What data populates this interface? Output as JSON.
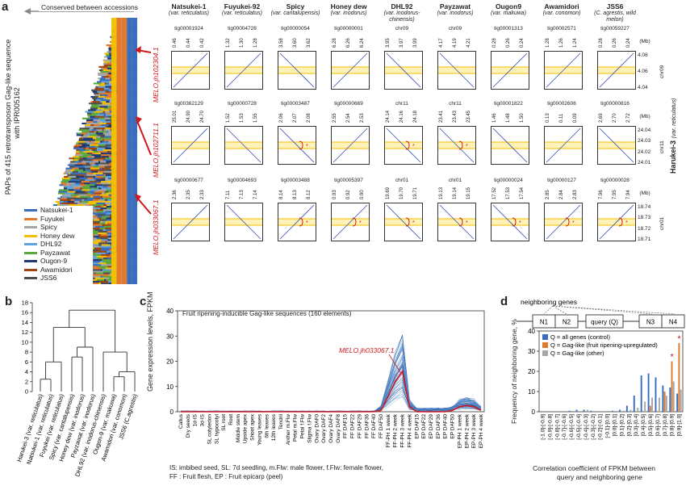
{
  "panel_a": {
    "letter": "a",
    "conserved_label": "Conserved between accessions",
    "y_axis_label": "PAPs of 415 retrotransposon Gag-like sequence",
    "y_axis_label2": "with IPR005162",
    "legend": [
      {
        "name": "Natsukei-1",
        "color": "#3a6ebd"
      },
      {
        "name": "Fuyukei",
        "color": "#e07a2e"
      },
      {
        "name": "Spicy",
        "color": "#a6a6a6"
      },
      {
        "name": "Honey dew",
        "color": "#f2c000"
      },
      {
        "name": "DHL92",
        "color": "#5fa3dc"
      },
      {
        "name": "Payzawat",
        "color": "#5aa83c"
      },
      {
        "name": "Ougon-9",
        "color": "#203a70"
      },
      {
        "name": "Awamidori",
        "color": "#a0450f"
      },
      {
        "name": "JSS6",
        "color": "#505050"
      }
    ],
    "cultivars": [
      {
        "name": "Natsukei-1",
        "sub": "(var. reticulatus)"
      },
      {
        "name": "Fuyukei-92",
        "sub": "(var. reticulatus)"
      },
      {
        "name": "Spicy",
        "sub": "(var. cantalupensis)"
      },
      {
        "name": "Honey dew",
        "sub": "(var. inodorus)"
      },
      {
        "name": "DHL92",
        "sub": "(var. inodorus-chinensis)"
      },
      {
        "name": "Payzawat",
        "sub": "(var. inodorus)"
      },
      {
        "name": "Ougon9",
        "sub": "(var. makuwa)"
      },
      {
        "name": "Awamidori",
        "sub": "(var. conomon)"
      },
      {
        "name": "JSS6",
        "sub": "(C. agrestis, wild melon)"
      }
    ],
    "reference_label": "Harukei-3",
    "reference_sub": "(var. reticulatus)",
    "mb_label": "(Mb)",
    "rows": [
      {
        "gene": "MELO.jh102304.1",
        "tigs": [
          "tig00001924",
          "tig00004728",
          "tig00000054",
          "tig00000001",
          "chr09",
          "chr09",
          "tig00001313",
          "tig00002571",
          "tig00059227"
        ],
        "ticks": [
          [
            "0.46",
            "0.44",
            "0.42"
          ],
          [
            "1.32",
            "1.30",
            "1.28"
          ],
          [
            "3.58",
            "3.60",
            "3.62"
          ],
          [
            "6.28",
            "6.26",
            "6.24"
          ],
          [
            "3.95",
            "3.97",
            "3.99"
          ],
          [
            "4.17",
            "4.19",
            "4.21"
          ],
          [
            "0.28",
            "0.26",
            "0.24"
          ],
          [
            "1.28",
            "1.26",
            "1.24"
          ],
          [
            "0.28",
            "0.26",
            "0.24"
          ]
        ],
        "chr": "chr09",
        "yticks": [
          "4.08",
          "4.06",
          "4.04"
        ]
      },
      {
        "gene": "MELO.jh102711.1",
        "tigs": [
          "tig00362129",
          "tig00000728",
          "tig00003487",
          "tig00000669",
          "chr11",
          "chr11",
          "tig00001822",
          "tig00002606",
          "tig00000816"
        ],
        "ticks": [
          [
            "25.01",
            "24.90",
            "24.70"
          ],
          [
            "1.52",
            "1.53",
            "1.55"
          ],
          [
            "2.06",
            "2.07",
            "2.08"
          ],
          [
            "2.55",
            "2.54",
            "2.53"
          ],
          [
            "24.14",
            "24.16",
            "24.18"
          ],
          [
            "23.41",
            "23.43",
            "23.45"
          ],
          [
            "1.46",
            "1.48",
            "1.50"
          ],
          [
            "0.13",
            "0.11",
            "0.09"
          ],
          [
            "2.69",
            "2.70",
            "2.72"
          ]
        ],
        "chr": "chr11",
        "yticks": [
          "24.04",
          "24.03",
          "24.02",
          "24.01"
        ]
      },
      {
        "gene": "MELO.jh033067.1",
        "tigs": [
          "tig00000677",
          "tig00004693",
          "tig00003488",
          "tig00005397",
          "chr01",
          "chr01",
          "tig00000024",
          "tig00000127",
          "tig00000028"
        ],
        "ticks": [
          [
            "2.36",
            "2.35",
            "2.33"
          ],
          [
            "7.11",
            "7.13",
            "7.14"
          ],
          [
            "8.14",
            "8.13",
            "8.12"
          ],
          [
            "0.93",
            "0.92",
            "0.90"
          ],
          [
            "19.69",
            "19.70",
            "19.71"
          ],
          [
            "19.13",
            "19.14",
            "19.15"
          ],
          [
            "17.52",
            "17.53",
            "17.54"
          ],
          [
            "2.85",
            "2.84",
            "2.83"
          ],
          [
            "7.96",
            "7.95",
            "7.94"
          ]
        ],
        "chr": "chr01",
        "yticks": [
          "18.74",
          "18.73",
          "18.72",
          "18.71"
        ]
      }
    ]
  },
  "panel_b": {
    "letter": "b",
    "yticks": [
      "0",
      "2",
      "4",
      "6",
      "8",
      "10",
      "12",
      "14",
      "16",
      "18"
    ],
    "leaves": [
      "Harukei-3 (var. reticulatus)",
      "Natsukei-1 (var. reticulatus)",
      "Fuyukei (var. reticulatus)",
      "Spicy (var. cantalupensis)",
      "Honey dew (var. inodorus)",
      "Payzawat (var. inodorus)",
      "DHL92 (var. inodorus-chinensis)",
      "Ougon-9 (var. makuwa)",
      "Awamidori (var. conomon)",
      "JSS6 (C.agrestis)"
    ]
  },
  "panel_c": {
    "letter": "c",
    "title": "Fruit ripening-inducible Gag-like sequences (160 elements)",
    "ylabel": "Gene expression levels, FPKM",
    "highlight": "MELO.jh033067.1",
    "footnote1": "IS: imbibed seed, SL: 7d seedling, m.Flw: male flower, f.Flw: female flower,",
    "footnote2": "FF : Fruit flesh, EP : Fruit epicarp (peel)"
  },
  "panel_d": {
    "letter": "d",
    "neighbor_label": "neighboring genes",
    "genes": [
      "N1",
      "N2",
      "query (Q)",
      "N3",
      "N4"
    ],
    "ylabel": "Frequency of neighboring gene, %",
    "xlabel1": "Correlation coefficient of FPKM between",
    "xlabel2": "query and neighboring gene",
    "legend": [
      {
        "name": "Q = all genes (control)",
        "color": "#3a6ebd"
      },
      {
        "name": "Q = Gag-like (fruit ripening-upregulated)",
        "color": "#e07a2e"
      },
      {
        "name": "Q = Gag-like (other)",
        "color": "#a6a6a6"
      }
    ],
    "star": "*"
  },
  "chart_data": [
    {
      "type": "line",
      "title": "Fruit ripening-inducible Gag-like sequences (160 elements)",
      "ylabel": "Gene expression levels, FPKM",
      "ylim": [
        0,
        40
      ],
      "yticks": [
        0,
        10,
        20,
        30,
        40
      ],
      "categories": [
        "Callus",
        "Dry seeds",
        "1d-IS",
        "3d-IS",
        "SL cotyledon",
        "SL hypocotyl",
        "SL root",
        "Root",
        "Middle stem",
        "Upside apex",
        "Shoot apex",
        "Young leaves",
        "6th leaves",
        "12th leaves",
        "Tendril",
        "Anther m.Flw",
        "Petal m.Flw",
        "Petal f.Flw",
        "Stigma f.Flw",
        "Ovary DAF0",
        "Ovary DAF2",
        "Ovary DAF4",
        "Ovary DAF8",
        "FF DAF15",
        "FF DAF22",
        "FF DAF29",
        "FF DAF36",
        "FF DAF40",
        "FF DAF50",
        "FF-PH 1 week",
        "FF-PH 2 week",
        "FF-PH 3 week",
        "FF-PH 4 week",
        "EP DAF15",
        "EP DAF22",
        "EP DAF29",
        "EP DAF36",
        "EP DAF40",
        "EP DAF50",
        "EP-PH 1 week",
        "EP-PH 2 week",
        "EP-PH 3 week",
        "EP-PH 4 week"
      ],
      "series": [
        {
          "name": "MELO.jh033067.1",
          "values": [
            0,
            0,
            0,
            0,
            0,
            0,
            0,
            0,
            0,
            0,
            0,
            0,
            0,
            0,
            0,
            0,
            0,
            0,
            0,
            0,
            0,
            0,
            0,
            0,
            0,
            0,
            0,
            0,
            0.5,
            6,
            12,
            16,
            2,
            0,
            0,
            0,
            0,
            0,
            0.5,
            2,
            2.5,
            2,
            0.5
          ]
        }
      ]
    },
    {
      "type": "bar",
      "ylabel": "Frequency of neighboring gene, %",
      "xlabel": "Correlation coefficient of FPKM between query and neighboring gene",
      "ylim": [
        0,
        40
      ],
      "yticks": [
        0,
        10,
        20,
        30,
        40
      ],
      "categories": [
        "[-1.0]-[-0.9]",
        "[-0.9]-[-0.8]",
        "[-0.8]-[-0.7]",
        "[-0.7]-[-0.6]",
        "[-0.6]-[-0.5]",
        "[-0.5]-[-0.4]",
        "[-0.4]-[-0.3]",
        "[-0.3]-[-0.2]",
        "[-0.2]-[-0.1]",
        "[-0.1]-[0.0]",
        "[0.0]-[0.1]",
        "[0.1]-[0.2]",
        "[0.2]-[0.3]",
        "[0.3]-[0.4]",
        "[0.4]-[0.5]",
        "[0.5]-[0.6]",
        "[0.6]-[0.7]",
        "[0.7]-[0.8]",
        "[0.8]-[0.9]",
        "[0.9]-[1.0]"
      ],
      "series": [
        {
          "name": "Q = all genes (control)",
          "values": [
            0,
            0,
            0,
            0,
            0.5,
            1,
            1,
            0.5,
            0,
            0,
            0.5,
            1,
            3,
            8,
            18,
            19,
            17,
            13,
            12,
            9
          ]
        },
        {
          "name": "Q = Gag-like (fruit ripening-upregulated)",
          "values": [
            0,
            0,
            0,
            0,
            0,
            0,
            0,
            0,
            0,
            0,
            0,
            0,
            0,
            0,
            0,
            3,
            0,
            10,
            25,
            34
          ]
        },
        {
          "name": "Q = Gag-like (other)",
          "values": [
            0,
            0,
            0,
            0,
            0,
            0,
            1,
            0,
            0,
            0,
            0,
            0.5,
            1,
            2,
            5,
            7,
            7,
            8,
            15,
            11
          ]
        }
      ]
    }
  ]
}
